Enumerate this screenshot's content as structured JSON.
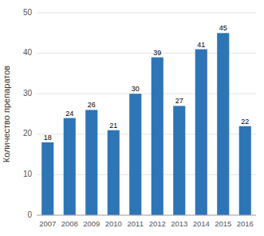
{
  "chart_data": {
    "type": "bar",
    "categories": [
      "2007",
      "2008",
      "2009",
      "2010",
      "2011",
      "2012",
      "2013",
      "2014",
      "2015",
      "2016"
    ],
    "values": [
      18,
      24,
      26,
      21,
      30,
      39,
      27,
      41,
      45,
      22
    ],
    "color": "#2E75B6",
    "ylabel": "Количество препаратов",
    "ylim": [
      0,
      50
    ],
    "yticks": [
      0,
      10,
      20,
      30,
      40,
      50
    ],
    "grid": true,
    "data_labels": true
  }
}
